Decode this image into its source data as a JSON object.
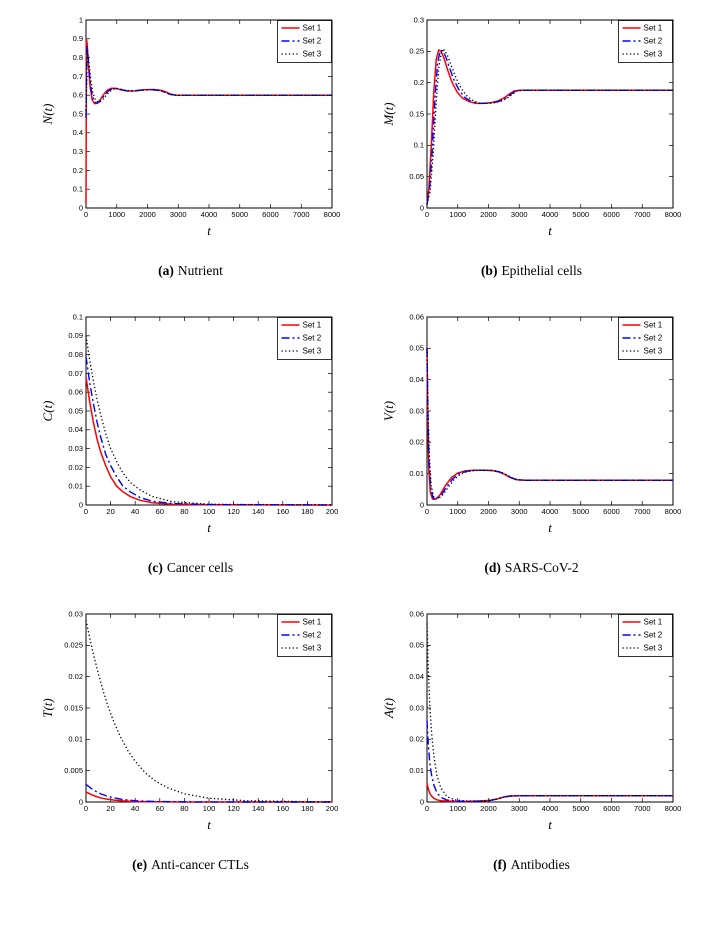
{
  "series_styles": [
    {
      "name": "Set 1",
      "color": "#ff0000",
      "dash": "solid",
      "width": 1.5
    },
    {
      "name": "Set 2",
      "color": "#0000ff",
      "dash": "dashdot",
      "width": 1.4
    },
    {
      "name": "Set 3",
      "color": "#000000",
      "dash": "dotted",
      "width": 1.3
    }
  ],
  "chart_data": [
    {
      "type": "line",
      "caption_tag": "(a)",
      "caption_text": "Nutrient",
      "xlabel": "t",
      "ylabel": "N(t)",
      "xlim": [
        0,
        8000
      ],
      "ylim": [
        0,
        1
      ],
      "xticks": [
        0,
        1000,
        2000,
        3000,
        4000,
        5000,
        6000,
        7000,
        8000
      ],
      "yticks": [
        0,
        0.1,
        0.2,
        0.3,
        0.4,
        0.5,
        0.6,
        0.7,
        0.8,
        0.9,
        1
      ],
      "grid": false,
      "legend": [
        "Set 1",
        "Set 2",
        "Set 3"
      ],
      "legend_position": "top-right",
      "series": [
        {
          "name": "Set 1",
          "x": [
            0,
            15,
            40,
            80,
            130,
            200,
            280,
            370,
            470,
            580,
            700,
            830,
            980,
            1150,
            1350,
            1600,
            1900,
            2200,
            2450,
            2600,
            2750,
            2950,
            3300,
            4000,
            6000,
            8000
          ],
          "y": [
            0.02,
            0.9,
            0.87,
            0.76,
            0.65,
            0.575,
            0.555,
            0.558,
            0.578,
            0.605,
            0.628,
            0.637,
            0.636,
            0.628,
            0.622,
            0.623,
            0.629,
            0.63,
            0.626,
            0.617,
            0.606,
            0.6,
            0.6,
            0.6,
            0.6,
            0.6
          ]
        },
        {
          "name": "Set 2",
          "x": [
            0,
            30,
            70,
            120,
            180,
            260,
            350,
            450,
            560,
            680,
            810,
            960,
            1130,
            1330,
            1580,
            1880,
            2180,
            2430,
            2590,
            2740,
            2940,
            3300,
            4000,
            6000,
            8000
          ],
          "y": [
            0.48,
            0.86,
            0.8,
            0.7,
            0.615,
            0.566,
            0.556,
            0.566,
            0.59,
            0.615,
            0.632,
            0.636,
            0.63,
            0.623,
            0.623,
            0.629,
            0.629,
            0.624,
            0.614,
            0.604,
            0.6,
            0.6,
            0.6,
            0.6,
            0.6
          ]
        },
        {
          "name": "Set 3",
          "x": [
            0,
            40,
            90,
            150,
            220,
            310,
            410,
            520,
            640,
            770,
            910,
            1070,
            1260,
            1500,
            1800,
            2100,
            2380,
            2550,
            2700,
            2900,
            3250,
            4000,
            6000,
            8000
          ],
          "y": [
            0.52,
            0.835,
            0.78,
            0.69,
            0.615,
            0.572,
            0.561,
            0.572,
            0.596,
            0.62,
            0.633,
            0.634,
            0.627,
            0.622,
            0.627,
            0.63,
            0.626,
            0.617,
            0.606,
            0.6,
            0.6,
            0.6,
            0.6,
            0.6
          ]
        }
      ]
    },
    {
      "type": "line",
      "caption_tag": "(b)",
      "caption_text": "Epithelial cells",
      "xlabel": "t",
      "ylabel": "M(t)",
      "xlim": [
        0,
        8000
      ],
      "ylim": [
        0,
        0.3
      ],
      "xticks": [
        0,
        1000,
        2000,
        3000,
        4000,
        5000,
        6000,
        7000,
        8000
      ],
      "yticks": [
        0,
        0.05,
        0.1,
        0.15,
        0.2,
        0.25,
        0.3
      ],
      "grid": false,
      "legend": [
        "Set 1",
        "Set 2",
        "Set 3"
      ],
      "legend_position": "top-right",
      "series": [
        {
          "name": "Set 1",
          "x": [
            0,
            60,
            140,
            220,
            300,
            380,
            460,
            560,
            680,
            820,
            980,
            1160,
            1360,
            1580,
            1820,
            2080,
            2320,
            2520,
            2680,
            2840,
            3050,
            3400,
            4000,
            6000,
            8000
          ],
          "y": [
            0.006,
            0.03,
            0.1,
            0.185,
            0.237,
            0.252,
            0.25,
            0.238,
            0.219,
            0.2,
            0.185,
            0.175,
            0.17,
            0.167,
            0.167,
            0.168,
            0.171,
            0.176,
            0.182,
            0.187,
            0.188,
            0.188,
            0.188,
            0.188,
            0.188
          ]
        },
        {
          "name": "Set 2",
          "x": [
            0,
            80,
            170,
            260,
            345,
            430,
            515,
            620,
            745,
            890,
            1055,
            1240,
            1440,
            1660,
            1900,
            2150,
            2390,
            2580,
            2740,
            2900,
            3110,
            3450,
            4000,
            6000,
            8000
          ],
          "y": [
            0.006,
            0.028,
            0.092,
            0.175,
            0.232,
            0.251,
            0.251,
            0.24,
            0.222,
            0.203,
            0.187,
            0.176,
            0.17,
            0.167,
            0.167,
            0.168,
            0.171,
            0.176,
            0.182,
            0.187,
            0.188,
            0.188,
            0.188,
            0.188,
            0.188
          ]
        },
        {
          "name": "Set 3",
          "x": [
            0,
            100,
            200,
            295,
            385,
            470,
            560,
            670,
            800,
            950,
            1120,
            1310,
            1510,
            1730,
            1970,
            2210,
            2450,
            2630,
            2790,
            2950,
            3160,
            3500,
            4000,
            6000,
            8000
          ],
          "y": [
            0.006,
            0.026,
            0.085,
            0.165,
            0.225,
            0.249,
            0.252,
            0.243,
            0.226,
            0.207,
            0.19,
            0.178,
            0.171,
            0.167,
            0.167,
            0.168,
            0.171,
            0.176,
            0.182,
            0.187,
            0.188,
            0.188,
            0.188,
            0.188,
            0.188
          ]
        }
      ]
    },
    {
      "type": "line",
      "caption_tag": "(c)",
      "caption_text": "Cancer cells",
      "xlabel": "t",
      "ylabel": "C(t)",
      "xlim": [
        0,
        200
      ],
      "ylim": [
        0,
        0.1
      ],
      "xticks": [
        0,
        20,
        40,
        60,
        80,
        100,
        120,
        140,
        160,
        180,
        200
      ],
      "yticks": [
        0,
        0.01,
        0.02,
        0.03,
        0.04,
        0.05,
        0.06,
        0.07,
        0.08,
        0.09,
        0.1
      ],
      "grid": false,
      "legend": [
        "Set 1",
        "Set 2",
        "Set 3"
      ],
      "legend_position": "top-right",
      "series": [
        {
          "name": "Set 1",
          "x": [
            0,
            3,
            6,
            9,
            12,
            16,
            20,
            25,
            30,
            36,
            44,
            54,
            70,
            100,
            200
          ],
          "y": [
            0.068,
            0.055,
            0.044,
            0.035,
            0.028,
            0.021,
            0.015,
            0.01,
            0.007,
            0.0045,
            0.0025,
            0.0012,
            0.0004,
            0.0001,
            0
          ]
        },
        {
          "name": "Set 2",
          "x": [
            0,
            3,
            6,
            9,
            12,
            16,
            20,
            25,
            30,
            36,
            44,
            54,
            70,
            100,
            200
          ],
          "y": [
            0.079,
            0.065,
            0.054,
            0.044,
            0.036,
            0.027,
            0.021,
            0.015,
            0.01,
            0.007,
            0.004,
            0.002,
            0.0008,
            0.0002,
            0
          ]
        },
        {
          "name": "Set 3",
          "x": [
            0,
            3,
            6,
            9,
            12,
            16,
            20,
            25,
            30,
            36,
            44,
            54,
            70,
            100,
            200
          ],
          "y": [
            0.09,
            0.077,
            0.066,
            0.056,
            0.048,
            0.038,
            0.03,
            0.023,
            0.017,
            0.012,
            0.008,
            0.0045,
            0.0018,
            0.0004,
            0
          ]
        }
      ]
    },
    {
      "type": "line",
      "caption_tag": "(d)",
      "caption_text": "SARS-CoV-2",
      "xlabel": "t",
      "ylabel": "V(t)",
      "xlim": [
        0,
        8000
      ],
      "ylim": [
        0,
        0.06
      ],
      "xticks": [
        0,
        1000,
        2000,
        3000,
        4000,
        5000,
        6000,
        7000,
        8000
      ],
      "yticks": [
        0,
        0.01,
        0.02,
        0.03,
        0.04,
        0.05,
        0.06
      ],
      "grid": false,
      "legend": [
        "Set 1",
        "Set 2",
        "Set 3"
      ],
      "legend_position": "top-right",
      "series": [
        {
          "name": "Set 1",
          "x": [
            0,
            25,
            60,
            110,
            180,
            280,
            420,
            600,
            800,
            1000,
            1250,
            1500,
            1800,
            2100,
            2330,
            2520,
            2700,
            2900,
            3200,
            4000,
            6000,
            8000
          ],
          "y": [
            0.05,
            0.026,
            0.011,
            0.004,
            0.0019,
            0.0018,
            0.0032,
            0.0062,
            0.0088,
            0.0102,
            0.0109,
            0.0111,
            0.0111,
            0.011,
            0.0106,
            0.0098,
            0.0088,
            0.0081,
            0.0079,
            0.0079,
            0.0079,
            0.0079
          ]
        },
        {
          "name": "Set 2",
          "x": [
            0,
            30,
            70,
            125,
            200,
            310,
            455,
            640,
            840,
            1040,
            1290,
            1540,
            1840,
            2140,
            2370,
            2560,
            2740,
            2940,
            3240,
            4000,
            6000,
            8000
          ],
          "y": [
            0.05,
            0.028,
            0.013,
            0.005,
            0.0022,
            0.0019,
            0.003,
            0.0058,
            0.0084,
            0.01,
            0.0108,
            0.0111,
            0.0111,
            0.011,
            0.0105,
            0.0097,
            0.0087,
            0.008,
            0.0079,
            0.0079,
            0.0079,
            0.0079
          ]
        },
        {
          "name": "Set 3",
          "x": [
            0,
            35,
            80,
            140,
            220,
            340,
            490,
            680,
            880,
            1080,
            1330,
            1580,
            1880,
            2180,
            2410,
            2600,
            2780,
            2980,
            3280,
            4000,
            6000,
            8000
          ],
          "y": [
            0.05,
            0.03,
            0.015,
            0.006,
            0.0025,
            0.002,
            0.0029,
            0.0055,
            0.0081,
            0.0098,
            0.0107,
            0.011,
            0.0111,
            0.011,
            0.0105,
            0.0096,
            0.0086,
            0.008,
            0.0079,
            0.0079,
            0.0079,
            0.0079
          ]
        }
      ]
    },
    {
      "type": "line",
      "caption_tag": "(e)",
      "caption_text": "Anti-cancer CTLs",
      "xlabel": "t",
      "ylabel": "T(t)",
      "xlim": [
        0,
        200
      ],
      "ylim": [
        0,
        0.03
      ],
      "xticks": [
        0,
        20,
        40,
        60,
        80,
        100,
        120,
        140,
        160,
        180,
        200
      ],
      "yticks": [
        0,
        0.005,
        0.01,
        0.015,
        0.02,
        0.025,
        0.03
      ],
      "grid": false,
      "legend": [
        "Set 1",
        "Set 2",
        "Set 3"
      ],
      "legend_position": "top-right",
      "series": [
        {
          "name": "Set 1",
          "x": [
            0,
            4,
            8,
            12,
            17,
            23,
            30,
            40,
            55,
            80,
            120,
            200
          ],
          "y": [
            0.0016,
            0.0012,
            0.0009,
            0.00065,
            0.00045,
            0.0003,
            0.00018,
            8e-05,
            3e-05,
            1e-05,
            0,
            0
          ]
        },
        {
          "name": "Set 2",
          "x": [
            0,
            4,
            8,
            12,
            17,
            23,
            30,
            40,
            55,
            80,
            120,
            200
          ],
          "y": [
            0.0028,
            0.0022,
            0.0017,
            0.0013,
            0.00095,
            0.00065,
            0.0004,
            0.0002,
            8e-05,
            2e-05,
            0,
            0
          ]
        },
        {
          "name": "Set 3",
          "x": [
            0,
            3,
            6,
            10,
            14,
            18,
            23,
            28,
            34,
            40,
            48,
            56,
            66,
            80,
            100,
            130,
            200
          ],
          "y": [
            0.029,
            0.0262,
            0.0236,
            0.0205,
            0.0177,
            0.0152,
            0.0126,
            0.0104,
            0.0082,
            0.0065,
            0.0047,
            0.0034,
            0.0023,
            0.0013,
            0.0006,
            0.0002,
            0
          ]
        }
      ]
    },
    {
      "type": "line",
      "caption_tag": "(f)",
      "caption_text": "Antibodies",
      "xlabel": "t",
      "ylabel": "A(t)",
      "xlim": [
        0,
        8000
      ],
      "ylim": [
        0,
        0.06
      ],
      "xticks": [
        0,
        1000,
        2000,
        3000,
        4000,
        5000,
        6000,
        7000,
        8000
      ],
      "yticks": [
        0,
        0.01,
        0.02,
        0.03,
        0.04,
        0.05,
        0.06
      ],
      "grid": false,
      "legend": [
        "Set 1",
        "Set 2",
        "Set 3"
      ],
      "legend_position": "top-right",
      "series": [
        {
          "name": "Set 1",
          "x": [
            0,
            40,
            90,
            150,
            220,
            320,
            450,
            650,
            900,
            1300,
            1700,
            2050,
            2300,
            2500,
            2700,
            3000,
            4000,
            6000,
            8000
          ],
          "y": [
            0.006,
            0.0042,
            0.0028,
            0.0019,
            0.0012,
            0.0007,
            0.0004,
            0.0003,
            0.0002,
            0.0002,
            0.0003,
            0.0005,
            0.001,
            0.0016,
            0.0019,
            0.002,
            0.002,
            0.002,
            0.002
          ]
        },
        {
          "name": "Set 2",
          "x": [
            0,
            40,
            90,
            150,
            220,
            320,
            450,
            650,
            900,
            1300,
            1700,
            2050,
            2300,
            2500,
            2700,
            3000,
            4000,
            6000,
            8000
          ],
          "y": [
            0.026,
            0.0185,
            0.0125,
            0.0085,
            0.0055,
            0.003,
            0.0015,
            0.0006,
            0.0003,
            0.0002,
            0.0003,
            0.0005,
            0.001,
            0.0016,
            0.0019,
            0.002,
            0.002,
            0.002,
            0.002
          ]
        },
        {
          "name": "Set 3",
          "x": [
            0,
            40,
            90,
            150,
            220,
            320,
            450,
            650,
            900,
            1300,
            1700,
            2050,
            2300,
            2500,
            2700,
            3000,
            4000,
            6000,
            8000
          ],
          "y": [
            0.057,
            0.043,
            0.031,
            0.022,
            0.015,
            0.0085,
            0.0045,
            0.0017,
            0.0007,
            0.0003,
            0.0003,
            0.0005,
            0.001,
            0.0016,
            0.0019,
            0.002,
            0.002,
            0.002,
            0.002
          ]
        }
      ]
    }
  ]
}
